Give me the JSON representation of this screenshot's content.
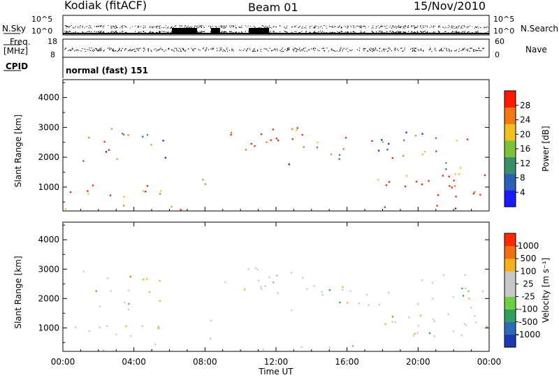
{
  "header": {
    "station": "Kodiak (fitACF)",
    "beam": "Beam 01",
    "date": "15/Nov/2010"
  },
  "top_panels": {
    "nsky_label": "N.Sky",
    "nsearch_label": "N.Search",
    "nsky_ticks": [
      "10^5",
      "10^0"
    ],
    "nsearch_ticks": [
      "10^5",
      "10^0"
    ],
    "freq_label_1": "Freq.",
    "freq_label_2": "[MHz]",
    "freq_ticks": [
      "18",
      "8"
    ],
    "nave_label": "Nave",
    "nave_ticks": [
      "60",
      "0"
    ],
    "cpid_label": "CPID",
    "cpid_value": "normal (fast) 151"
  },
  "chart_data": [
    {
      "type": "heatmap",
      "name": "power",
      "ylabel": "Slant Range [km]",
      "y_ticks": [
        "1000",
        "2000",
        "3000",
        "4000"
      ],
      "ylim": [
        200,
        4600
      ],
      "x_ticks": [
        "00:00",
        "04:00",
        "08:00",
        "12:00",
        "16:00",
        "20:00",
        "00:00"
      ],
      "xlim_hours": [
        0,
        24
      ],
      "colorbar_label": "Power [dB]",
      "colorbar_ticks": [
        "4",
        "8",
        "12",
        "16",
        "20",
        "24",
        "28"
      ],
      "colorbar_colors": [
        "#1a1aff",
        "#2b5fb8",
        "#3a8f6a",
        "#7ec23c",
        "#f0c020",
        "#f07a10",
        "#ff1a00"
      ]
    },
    {
      "type": "heatmap",
      "name": "velocity",
      "ylabel": "Slant Range [km]",
      "y_ticks": [
        "1000",
        "2000",
        "3000",
        "4000"
      ],
      "ylim": [
        200,
        4600
      ],
      "x_ticks": [
        "00:00",
        "04:00",
        "08:00",
        "12:00",
        "16:00",
        "20:00",
        "00:00"
      ],
      "xlim_hours": [
        0,
        24
      ],
      "xlabel": "Time UT",
      "colorbar_label": "Velocity [m s⁻¹]",
      "colorbar_ticks": [
        "1000",
        "500",
        "100",
        "25",
        "-25",
        "-100",
        "-500",
        "-1000"
      ],
      "colorbar_colors": [
        "#1a3ab0",
        "#2e6ab8",
        "#2fa060",
        "#6cd040",
        "#c8c8c8",
        "#c8c8c8",
        "#f5b020",
        "#f07010",
        "#ff2a00"
      ]
    }
  ]
}
